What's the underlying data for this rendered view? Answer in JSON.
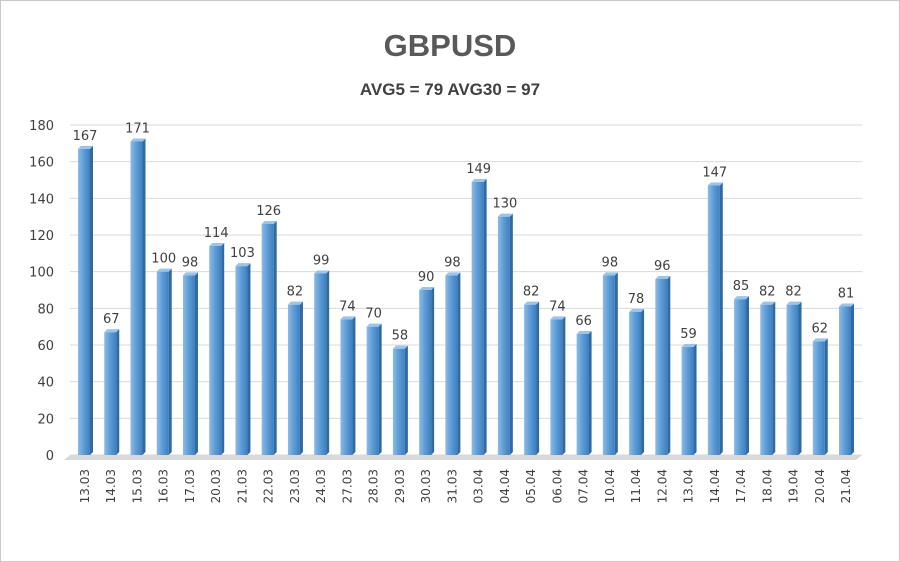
{
  "chart_data": {
    "type": "bar",
    "title": "GBPUSD",
    "subtitle": "AVG5 = 79 AVG30 = 97",
    "xlabel": "",
    "ylabel": "",
    "ylim": [
      0,
      180
    ],
    "yticks": [
      0,
      20,
      40,
      60,
      80,
      100,
      120,
      140,
      160,
      180
    ],
    "grid": true,
    "bar_color": "#5b9bd5",
    "categories": [
      "13.03",
      "14.03",
      "15.03",
      "16.03",
      "17.03",
      "20.03",
      "21.03",
      "22.03",
      "23.03",
      "24.03",
      "27.03",
      "28.03",
      "29.03",
      "30.03",
      "31.03",
      "03.04",
      "04.04",
      "05.04",
      "06.04",
      "07.04",
      "10.04",
      "11.04",
      "12.04",
      "13.04",
      "14.04",
      "17.04",
      "18.04",
      "19.04",
      "20.04",
      "21.04"
    ],
    "values": [
      167,
      67,
      171,
      100,
      98,
      114,
      103,
      126,
      82,
      99,
      74,
      70,
      58,
      90,
      98,
      149,
      130,
      82,
      74,
      66,
      98,
      78,
      96,
      59,
      147,
      85,
      82,
      82,
      62,
      81
    ]
  }
}
